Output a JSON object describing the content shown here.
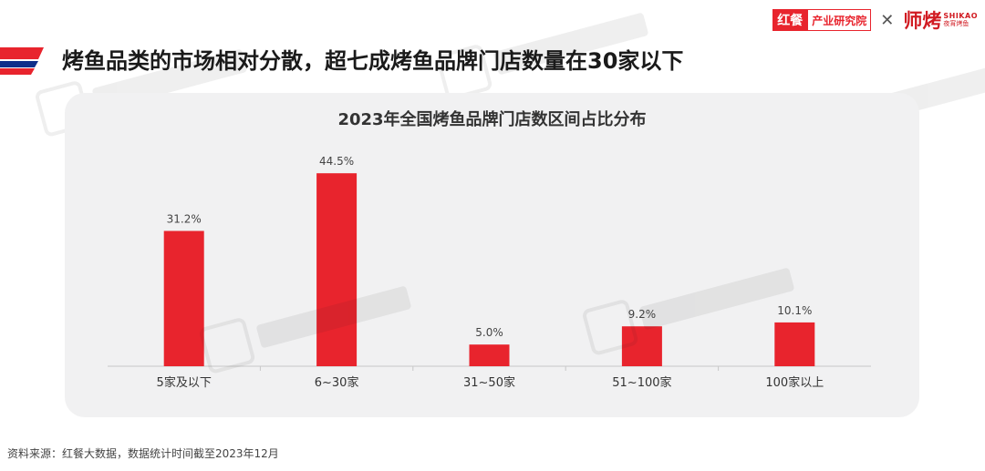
{
  "header": {
    "logo_left_mark": "红餐",
    "logo_left_text": "产业研究院",
    "logo_right_mark": "师烤",
    "logo_right_sub_en": "SHIKAO",
    "logo_right_sub_cn": "夜宵烤鱼",
    "title": "烤鱼品类的市场相对分散，超七成烤鱼品牌门店数量在30家以下"
  },
  "colors": {
    "accent": "#e8242d",
    "bar": "#e8242d",
    "panel": "#f1f1f2",
    "title_accent_dark": "#0f2f8a"
  },
  "chart_data": {
    "type": "bar",
    "title": "2023年全国烤鱼品牌门店数区间占比分布",
    "categories": [
      "5家及以下",
      "6~30家",
      "31~50家",
      "51~100家",
      "100家以上"
    ],
    "values": [
      31.2,
      44.5,
      5.0,
      9.2,
      10.1
    ],
    "value_labels": [
      "31.2%",
      "44.5%",
      "5.0%",
      "9.2%",
      "10.1%"
    ],
    "unit": "%",
    "ylim": [
      0,
      50
    ],
    "grid": false,
    "legend": "none"
  },
  "footer": {
    "source": "资料来源：红餐大数据，数据统计时间截至2023年12月"
  }
}
